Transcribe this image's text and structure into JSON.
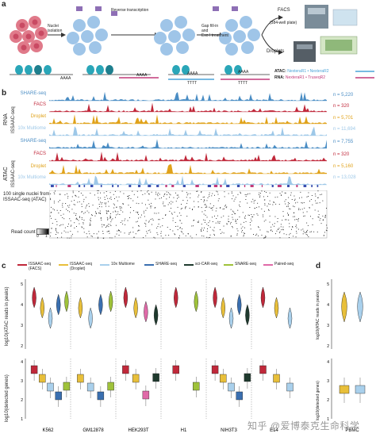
{
  "panel_a": {
    "label": "a",
    "step_labels": [
      "Nuclei\nisolation",
      "Reverse transcription",
      "Gap fill-in\nand\nExo I treatment"
    ],
    "facs_label": "FACS",
    "facs_sub": "(384-well plate)",
    "droplets_label": "Droplets",
    "polyA": [
      "AAAA",
      "AAAA",
      "AAAA",
      "TTTT",
      "AAAA",
      "TTTT"
    ],
    "legend_atac_prefix": "ATAC:",
    "legend_atac_text": "NexteraR1 • NexteraR2",
    "legend_rna_prefix": "RNA:",
    "legend_rna_text": "NexteraR1 • TruseqR2",
    "colors": {
      "cell": "#e07a8a",
      "nucleus": "#9fc5e8",
      "tn5": "#8e6fb5",
      "chromatin": "#2aa6b8",
      "rna_line": "#c23a7a",
      "atac_line": "#4aa3d8"
    }
  },
  "panel_b": {
    "label": "b",
    "rna_group": "RNA",
    "atac_group": "ATAC",
    "issaac_label": "ISSAAC-seq",
    "tracks": [
      {
        "name": "SHARE-seq",
        "n": "n = 5,220",
        "color": "#4a8dc4"
      },
      {
        "name": "FACS",
        "n": "n = 320",
        "color": "#c0283a"
      },
      {
        "name": "Droplet",
        "n": "n = 5,701",
        "color": "#e0a21a"
      },
      {
        "name": "10x Multiome",
        "n": "n = 11,694",
        "color": "#9ec8e8"
      },
      {
        "name": "SHARE-seq",
        "n": "n = 7,755",
        "color": "#4a8dc4"
      },
      {
        "name": "FACS",
        "n": "n = 320",
        "color": "#c0283a"
      },
      {
        "name": "Droplet",
        "n": "n = 5,160",
        "color": "#e0a21a"
      },
      {
        "name": "10x Multiome",
        "n": "n = 13,028",
        "color": "#9ec8e8"
      }
    ],
    "single_nuclei_label": "100 single nuclei from\nISSAAC-seq (ATAC)",
    "read_count_label": "Read count",
    "read_count_scale": [
      "0",
      "1"
    ]
  },
  "panel_c": {
    "label": "c",
    "legend": [
      {
        "name": "ISSAAC-seq\n(FACS)",
        "color": "#c0283a"
      },
      {
        "name": "ISSAAC-seq\n(Droplet)",
        "color": "#e8bf3a"
      },
      {
        "name": "10x Multiome",
        "color": "#a9d0ec"
      },
      {
        "name": "SHARE-seq",
        "color": "#3a6fb0"
      },
      {
        "name": "sci-CAR-seq",
        "color": "#1f3a2e"
      },
      {
        "name": "SNARE-seq",
        "color": "#9fc23a"
      },
      {
        "name": "Paired-seq",
        "color": "#e06aa8"
      }
    ],
    "violin_ylabel": "log10(ATAC reads in peaks)",
    "box_ylabel": "log10(detected genes)",
    "violin_yticks": [
      "5",
      "4",
      "3",
      "2"
    ],
    "box_yticks": [
      "4",
      "3",
      "2",
      "1"
    ],
    "categories": [
      "K562",
      "GM12878",
      "HEK293T",
      "H1",
      "NIH3T3",
      "E14"
    ]
  },
  "panel_d": {
    "label": "d",
    "violin_ylabel": "log10(ATAC reads in peaks)",
    "box_ylabel": "log10(detected genes)",
    "violin_yticks": [
      "5",
      "4",
      "3",
      "2"
    ],
    "box_yticks": [
      "4",
      "3",
      "2",
      "1"
    ],
    "category": "PBMC"
  },
  "watermark": "知乎 @爱博泰克生命科学"
}
